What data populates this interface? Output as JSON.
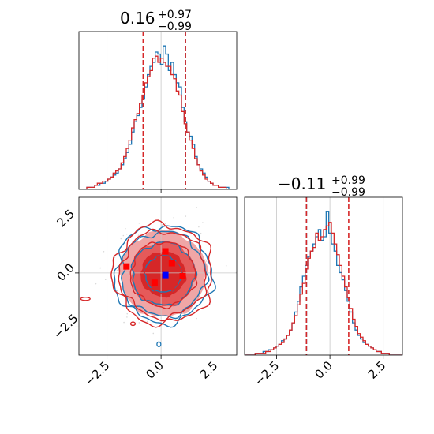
{
  "chart_data": {
    "type": "corner",
    "colors": {
      "blue": "#1f77b4",
      "red": "#d62728",
      "point_blue": "#0000ff",
      "point_red": "#ff0000",
      "grid": "#c8c8c8",
      "scatter": "#d9d9d9"
    },
    "grid": true,
    "panels": [
      {
        "id": "x0-marginal",
        "type": "histogram",
        "title": {
          "main": "0.16",
          "sup": "+0.97",
          "sub": "−0.99"
        },
        "xlim": [
          -3.8,
          3.5
        ],
        "x_ticks": [
          -2.5,
          0.0,
          2.5
        ],
        "series": [
          {
            "name": "",
            "color": "#1f77b4",
            "bin_edges": [
              -3.8,
              3.5
            ],
            "values": [
              0,
              0,
              0,
              1,
              1,
              1,
              2,
              2,
              3,
              3,
              4,
              5,
              6,
              7,
              8,
              10,
              12,
              15,
              18,
              22,
              28,
              33,
              36,
              40,
              44,
              50,
              56,
              60,
              62,
              67,
              66,
              61,
              70,
              66,
              58,
              62,
              56,
              52,
              50,
              40,
              33,
              28,
              26,
              22,
              16,
              12,
              10,
              8,
              6,
              4,
              3,
              2,
              2,
              1,
              1,
              1,
              1,
              0,
              0,
              0
            ]
          },
          {
            "name": "",
            "color": "#d62728",
            "bin_edges": [
              -3.8,
              3.5
            ],
            "values": [
              0,
              0,
              0,
              1,
              1,
              1,
              2,
              3,
              3,
              4,
              4,
              5,
              6,
              8,
              9,
              10,
              13,
              16,
              20,
              24,
              30,
              34,
              37,
              42,
              46,
              52,
              55,
              58,
              64,
              65,
              62,
              64,
              62,
              60,
              60,
              56,
              54,
              48,
              46,
              38,
              32,
              28,
              24,
              20,
              15,
              12,
              9,
              7,
              5,
              4,
              3,
              2,
              2,
              1,
              1,
              1,
              0,
              0,
              0,
              0
            ]
          }
        ],
        "quantile_lines": [
          {
            "value": -0.83,
            "color": "#d62728"
          },
          {
            "value": 1.13,
            "color": "#1f77b4"
          },
          {
            "value": 1.13,
            "color": "#d62728"
          }
        ]
      },
      {
        "id": "x1-vs-x0",
        "type": "contour",
        "xlim": [
          -3.8,
          3.5
        ],
        "ylim": [
          -3.8,
          3.5
        ],
        "x_ticks": [
          -2.5,
          0.0,
          2.5
        ],
        "y_ticks": [
          -2.5,
          0.0,
          2.5
        ],
        "density_levels": [
          {
            "level": 3,
            "radius": 2.0,
            "color": "#f0a6a6"
          },
          {
            "level": 2,
            "radius": 1.5,
            "color": "#e55a5a"
          },
          {
            "level": 1,
            "radius": 1.05,
            "color": "#d62728"
          }
        ],
        "contours": [
          {
            "name": "",
            "color": "#1f77b4",
            "radii": [
              0.85,
              1.45,
              1.95,
              2.25
            ]
          },
          {
            "name": "",
            "color": "#d62728",
            "radii": [
              0.9,
              1.5,
              2.0,
              2.3
            ]
          }
        ],
        "points": [
          {
            "x": -1.6,
            "y": 0.3,
            "color": "#ff0000"
          },
          {
            "x": 0.2,
            "y": 1.0,
            "color": "#ff0000"
          },
          {
            "x": 0.5,
            "y": 0.45,
            "color": "#ff0000"
          },
          {
            "x": -0.3,
            "y": -0.45,
            "color": "#ff0000"
          },
          {
            "x": 1.0,
            "y": -0.15,
            "color": "#ff0000"
          },
          {
            "x": 0.2,
            "y": -0.1,
            "color": "#0000ff"
          }
        ]
      },
      {
        "id": "x1-marginal",
        "type": "histogram",
        "title": {
          "main": "−0.11",
          "sup": "+0.99",
          "sub": "−0.99"
        },
        "xlim": [
          -4.0,
          3.4
        ],
        "x_ticks": [
          -2.5,
          0.0,
          2.5
        ],
        "series": [
          {
            "name": "",
            "color": "#1f77b4",
            "bin_edges": [
              -4.0,
              3.4
            ],
            "values": [
              0,
              0,
              0,
              0,
              1,
              1,
              1,
              2,
              2,
              3,
              3,
              4,
              5,
              6,
              8,
              9,
              11,
              14,
              18,
              24,
              30,
              38,
              44,
              50,
              55,
              58,
              62,
              66,
              70,
              64,
              66,
              80,
              68,
              62,
              58,
              50,
              46,
              42,
              36,
              30,
              24,
              18,
              14,
              11,
              9,
              7,
              6,
              5,
              4,
              3,
              2,
              2,
              1,
              1,
              1,
              0,
              0,
              0,
              0,
              0
            ]
          },
          {
            "name": "",
            "color": "#d62728",
            "bin_edges": [
              -4.0,
              3.4
            ],
            "values": [
              0,
              0,
              0,
              0,
              1,
              1,
              1,
              1,
              2,
              2,
              3,
              4,
              5,
              6,
              7,
              9,
              11,
              14,
              18,
              22,
              28,
              34,
              40,
              48,
              54,
              58,
              60,
              68,
              64,
              66,
              70,
              72,
              74,
              68,
              62,
              56,
              50,
              44,
              38,
              32,
              26,
              20,
              16,
              12,
              10,
              8,
              6,
              5,
              4,
              3,
              2,
              2,
              1,
              1,
              1,
              0,
              0,
              0,
              0,
              0
            ]
          }
        ],
        "quantile_lines": [
          {
            "value": -1.1,
            "color": "#1f77b4"
          },
          {
            "value": -1.1,
            "color": "#d62728"
          },
          {
            "value": 0.88,
            "color": "#d62728"
          }
        ]
      }
    ]
  }
}
